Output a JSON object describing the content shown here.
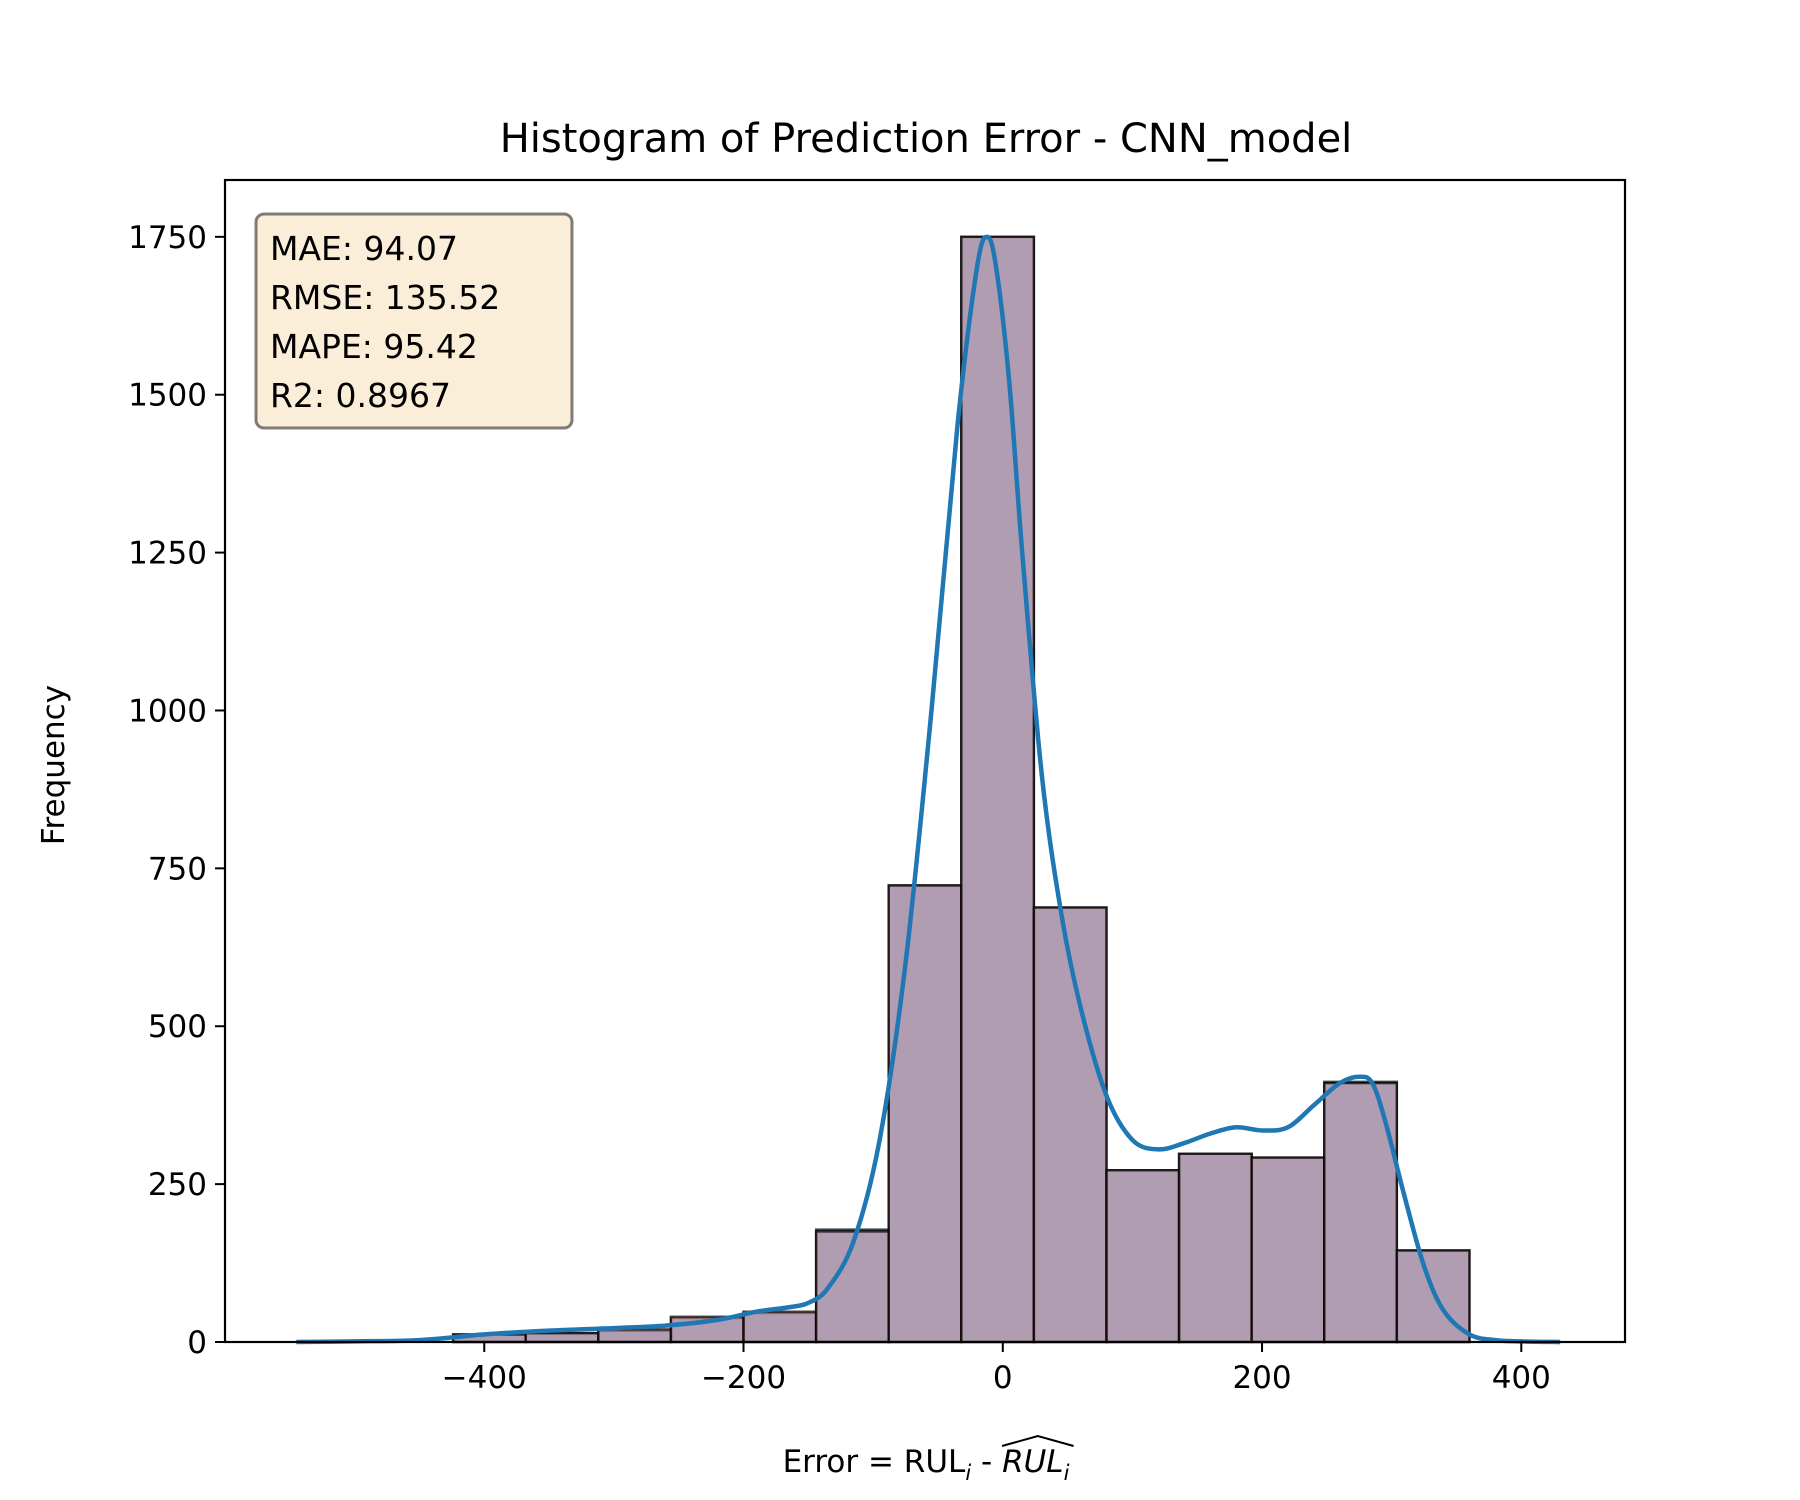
{
  "colors": {
    "bar_blue": "#1f77b4",
    "bar_red": "#ff9999",
    "kde_line": "#1f77b4",
    "stats_box_bg": "#f5deb3",
    "edge": "#000000"
  },
  "chart_data": {
    "type": "histogram",
    "title": "Histogram of Prediction Error - CNN_model",
    "xlabel": "Error = RUL",
    "xlabel_sub": "i",
    "xlabel_sep": " - ",
    "xlabel_hat": "RUL",
    "xlabel_hat_sub": "i",
    "ylabel": "Frequency",
    "xlim": [
      -600,
      480
    ],
    "ylim": [
      0,
      1840
    ],
    "xticks": [
      -400,
      -200,
      0,
      200,
      400
    ],
    "xtick_labels": [
      "−400",
      "−200",
      "0",
      "200",
      "400"
    ],
    "yticks": [
      0,
      250,
      500,
      750,
      1000,
      1250,
      1500,
      1750
    ],
    "ytick_labels": [
      "0",
      "250",
      "500",
      "750",
      "1000",
      "1250",
      "1500",
      "1750"
    ],
    "bin_edges": [
      -424,
      -368,
      -312,
      -256,
      -200,
      -144,
      -88,
      -32,
      24,
      80,
      136,
      192,
      248,
      304,
      360
    ],
    "series": [
      {
        "name": "blue",
        "values": [
          12,
          14,
          18,
          38,
          46,
          178,
          723,
          1750,
          688,
          272,
          298,
          292,
          412,
          145
        ],
        "alpha": 0.7
      },
      {
        "name": "red",
        "values": [
          12,
          14,
          20,
          40,
          48,
          175,
          723,
          1750,
          688,
          272,
          298,
          292,
          410,
          145
        ],
        "alpha": 0.5
      }
    ],
    "kde": {
      "x": [
        -545,
        -500,
        -450,
        -400,
        -350,
        -300,
        -260,
        -220,
        -190,
        -165,
        -150,
        -135,
        -115,
        -95,
        -75,
        -55,
        -35,
        -20,
        -12,
        -5,
        5,
        15,
        30,
        45,
        60,
        80,
        100,
        120,
        140,
        160,
        180,
        200,
        220,
        240,
        260,
        275,
        285,
        295,
        310,
        325,
        340,
        360,
        380,
        400,
        430
      ],
      "y": [
        0,
        1,
        3,
        12,
        18,
        22,
        26,
        35,
        48,
        55,
        62,
        85,
        160,
        320,
        600,
        1000,
        1450,
        1700,
        1750,
        1700,
        1520,
        1250,
        900,
        680,
        530,
        390,
        320,
        305,
        315,
        330,
        340,
        335,
        340,
        375,
        410,
        420,
        410,
        350,
        230,
        120,
        50,
        12,
        3,
        1,
        0
      ]
    },
    "stats_box": {
      "lines": [
        "MAE: 94.07",
        "RMSE: 135.52",
        "MAPE: 95.42",
        "R2: 0.8967"
      ],
      "position": "top-left"
    }
  }
}
